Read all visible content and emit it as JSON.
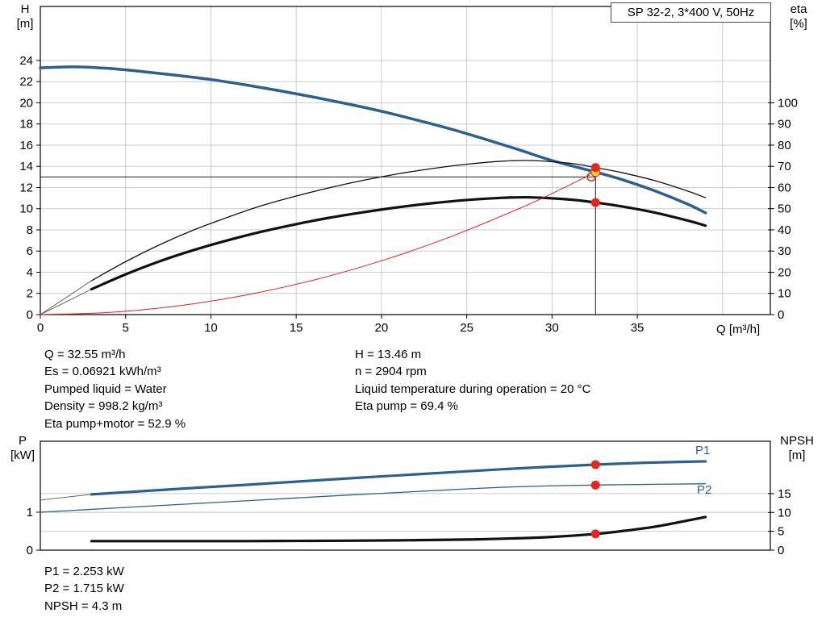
{
  "title_box": "SP 32-2, 3*400 V, 50Hz",
  "labels": {
    "h_name": "H",
    "h_unit": "[m]",
    "eta_name": "eta",
    "eta_unit": "[%]",
    "p_name": "P",
    "p_unit": "[kW]",
    "npsh_name": "NPSH",
    "npsh_unit": "[m]",
    "p1": "P1",
    "p2": "P2"
  },
  "results": {
    "left": [
      "Q = 32.55 m³/h",
      "Es = 0.06921 kWh/m³",
      "Pumped liquid = Water",
      "Density = 998.2 kg/m³",
      "Eta pump+motor = 52.9 %"
    ],
    "right": [
      "H = 13.46 m",
      "n = 2904 rpm",
      "Liquid temperature during operation = 20 °C",
      "Eta pump = 69.4 %"
    ],
    "bottom": [
      "P1 = 2.253 kW",
      "P2 = 1.715 kW",
      "NPSH = 4.3 m"
    ]
  },
  "colors": {
    "curve_blue": "#2d5f8f",
    "curve_black": "#111111",
    "system_red": "#e0251c",
    "marker_red": "#e8251d",
    "marker_yellow": "#ffd21e",
    "grid": "#cbcbcb",
    "frame": "#000000"
  },
  "chart_data": [
    {
      "type": "line",
      "x": {
        "label": "Q [m³/h]",
        "min": 0,
        "max": 42.8,
        "ticks": [
          0,
          5,
          10,
          15,
          20,
          25,
          30,
          35
        ],
        "grid": [
          5,
          10,
          15,
          20,
          25,
          30,
          35,
          40
        ]
      },
      "y_left": {
        "label": "H [m]",
        "min": 0,
        "max": 29.1,
        "ticks": [
          0,
          2,
          4,
          6,
          8,
          10,
          12,
          14,
          16,
          18,
          20,
          22,
          24
        ],
        "grid": true
      },
      "y_right": {
        "label": "eta [%]",
        "min": 0,
        "max": 145.5,
        "ticks": [
          0,
          10,
          20,
          30,
          40,
          50,
          60,
          70,
          80,
          90,
          100
        ],
        "grid": false
      },
      "series": [
        {
          "name": "pump-head-curve",
          "axis": "left",
          "color": "#2d5f8f",
          "width": 3.5,
          "points": [
            [
              0,
              23.3
            ],
            [
              2,
              23.4
            ],
            [
              4,
              23.25
            ],
            [
              6,
              22.95
            ],
            [
              8,
              22.6
            ],
            [
              10,
              22.2
            ],
            [
              12,
              21.7
            ],
            [
              14,
              21.15
            ],
            [
              16,
              20.55
            ],
            [
              18,
              19.9
            ],
            [
              20,
              19.2
            ],
            [
              22,
              18.4
            ],
            [
              24,
              17.55
            ],
            [
              26,
              16.6
            ],
            [
              28,
              15.6
            ],
            [
              30,
              14.55
            ],
            [
              32.55,
              13.46
            ],
            [
              34,
              12.8
            ],
            [
              36,
              11.7
            ],
            [
              38,
              10.4
            ],
            [
              39,
              9.6
            ]
          ]
        },
        {
          "name": "eta-pump-leader",
          "axis": "right",
          "color": "#555555",
          "width": 0.9,
          "points": [
            [
              0,
              0
            ],
            [
              3,
              16
            ]
          ]
        },
        {
          "name": "eta-pump-motor-leader",
          "axis": "right",
          "color": "#555555",
          "width": 0.9,
          "points": [
            [
              0,
              0
            ],
            [
              3,
              12
            ]
          ]
        },
        {
          "name": "eta-pump-curve",
          "axis": "right",
          "color": "#111111",
          "width": 1.3,
          "points": [
            [
              3,
              16
            ],
            [
              5,
              25
            ],
            [
              7,
              33
            ],
            [
              9,
              40
            ],
            [
              11,
              46
            ],
            [
              13,
              51.5
            ],
            [
              15,
              56
            ],
            [
              17,
              60
            ],
            [
              19,
              63.5
            ],
            [
              21,
              66.5
            ],
            [
              23,
              69
            ],
            [
              25,
              71
            ],
            [
              27,
              72.4
            ],
            [
              28.5,
              72.8
            ],
            [
              30,
              72.2
            ],
            [
              31.5,
              71
            ],
            [
              32.55,
              69.4
            ],
            [
              34,
              67.2
            ],
            [
              36,
              63.3
            ],
            [
              38,
              58.2
            ],
            [
              39,
              55.2
            ]
          ]
        },
        {
          "name": "eta-pump-motor-curve",
          "axis": "right",
          "color": "#111111",
          "width": 3.2,
          "points": [
            [
              3,
              12
            ],
            [
              5,
              19
            ],
            [
              7,
              25.2
            ],
            [
              9,
              30.5
            ],
            [
              11,
              35.1
            ],
            [
              13,
              39.2
            ],
            [
              15,
              42.7
            ],
            [
              17,
              45.8
            ],
            [
              19,
              48.4
            ],
            [
              21,
              50.7
            ],
            [
              23,
              52.6
            ],
            [
              25,
              54.1
            ],
            [
              27,
              55.1
            ],
            [
              28.5,
              55.4
            ],
            [
              30,
              54.9
            ],
            [
              31.5,
              54
            ],
            [
              32.55,
              52.9
            ],
            [
              34,
              51.2
            ],
            [
              36,
              48.2
            ],
            [
              38,
              44.3
            ],
            [
              39,
              42
            ]
          ]
        },
        {
          "name": "system-curve",
          "axis": "left",
          "color": "#e0251c",
          "width": 1,
          "points": [
            [
              0,
              0
            ],
            [
              4,
              0.2
            ],
            [
              8,
              0.81
            ],
            [
              12,
              1.83
            ],
            [
              16,
              3.25
            ],
            [
              20,
              5.08
            ],
            [
              24,
              7.32
            ],
            [
              28,
              9.96
            ],
            [
              30,
              11.43
            ],
            [
              32.2,
              13.17
            ]
          ]
        }
      ],
      "ref_lines": [
        {
          "name": "duty-h-line",
          "type": "h",
          "v": 13.0,
          "axis": "left",
          "x1": 0,
          "x2": 32.55,
          "color": "#000000",
          "width": 0.9
        },
        {
          "name": "duty-q-line",
          "type": "v",
          "x": 32.55,
          "v1": 0,
          "v2": 13.9,
          "axis": "left",
          "color": "#000000",
          "width": 0.9
        }
      ],
      "markers": [
        {
          "name": "duty-point-open",
          "x": 32.3,
          "v": 13.0,
          "axis": "left",
          "r": 5,
          "fill": "none",
          "stroke": "#e0251c",
          "sw": 1.5
        },
        {
          "name": "duty-point",
          "x": 32.55,
          "v": 13.46,
          "axis": "left",
          "r": 5.5,
          "fill": "#ffd21e",
          "stroke": "#e0251c",
          "sw": 1
        },
        {
          "name": "eta-pump-point",
          "x": 32.55,
          "v": 69.4,
          "axis": "right",
          "r": 5.5,
          "fill": "#e8251d",
          "stroke": "none",
          "sw": 0
        },
        {
          "name": "eta-pump-motor-point",
          "x": 32.55,
          "v": 52.9,
          "axis": "right",
          "r": 5.5,
          "fill": "#e8251d",
          "stroke": "none",
          "sw": 0
        }
      ]
    },
    {
      "type": "line",
      "x": {
        "label": "",
        "min": 0,
        "max": 42.8,
        "ticks": [],
        "grid": []
      },
      "y_left": {
        "label": "P [kW]",
        "min": 0,
        "max": 2.87,
        "ticks": [
          0,
          1
        ],
        "grid": true
      },
      "y_right": {
        "label": "NPSH [m]",
        "min": 0,
        "max": 28.9,
        "ticks": [
          0,
          5,
          10,
          15
        ],
        "grid": true
      },
      "series": [
        {
          "name": "p1-leader",
          "axis": "left",
          "color": "#555555",
          "width": 0.9,
          "points": [
            [
              0,
              1.32
            ],
            [
              3,
              1.47
            ]
          ]
        },
        {
          "name": "p1-curve",
          "axis": "left",
          "color": "#2d5f8f",
          "width": 3.2,
          "points": [
            [
              3,
              1.47
            ],
            [
              6,
              1.555
            ],
            [
              9,
              1.64
            ],
            [
              12,
              1.72
            ],
            [
              15,
              1.805
            ],
            [
              18,
              1.89
            ],
            [
              21,
              1.97
            ],
            [
              24,
              2.05
            ],
            [
              27,
              2.13
            ],
            [
              30,
              2.2
            ],
            [
              32.55,
              2.253
            ],
            [
              34,
              2.28
            ],
            [
              36,
              2.31
            ],
            [
              38,
              2.33
            ],
            [
              39,
              2.34
            ]
          ]
        },
        {
          "name": "p2-curve",
          "axis": "left",
          "color": "#2d5f8f",
          "width": 1.3,
          "points": [
            [
              0,
              1.0
            ],
            [
              3,
              1.075
            ],
            [
              6,
              1.15
            ],
            [
              9,
              1.225
            ],
            [
              12,
              1.3
            ],
            [
              15,
              1.375
            ],
            [
              18,
              1.45
            ],
            [
              21,
              1.52
            ],
            [
              24,
              1.59
            ],
            [
              27,
              1.655
            ],
            [
              30,
              1.695
            ],
            [
              32.55,
              1.715
            ],
            [
              34,
              1.725
            ],
            [
              36,
              1.735
            ],
            [
              38,
              1.745
            ],
            [
              39,
              1.75
            ]
          ]
        },
        {
          "name": "npsh-curve",
          "axis": "right",
          "color": "#111111",
          "width": 3.2,
          "points": [
            [
              3,
              2.4
            ],
            [
              6,
              2.4
            ],
            [
              9,
              2.4
            ],
            [
              12,
              2.4
            ],
            [
              15,
              2.45
            ],
            [
              18,
              2.5
            ],
            [
              21,
              2.6
            ],
            [
              24,
              2.75
            ],
            [
              26,
              2.9
            ],
            [
              28,
              3.15
            ],
            [
              30,
              3.5
            ],
            [
              32.55,
              4.3
            ],
            [
              34,
              5.0
            ],
            [
              36,
              6.2
            ],
            [
              38,
              7.9
            ],
            [
              39,
              8.8
            ]
          ]
        }
      ],
      "ref_lines": [],
      "markers": [
        {
          "name": "p1-point",
          "x": 32.55,
          "v": 2.253,
          "axis": "left",
          "r": 5.5,
          "fill": "#e8251d",
          "stroke": "none",
          "sw": 0
        },
        {
          "name": "p2-point",
          "x": 32.55,
          "v": 1.715,
          "axis": "left",
          "r": 5.5,
          "fill": "#e8251d",
          "stroke": "none",
          "sw": 0
        },
        {
          "name": "npsh-point",
          "x": 32.55,
          "v": 4.3,
          "axis": "right",
          "r": 5.5,
          "fill": "#e8251d",
          "stroke": "none",
          "sw": 0
        }
      ]
    }
  ]
}
